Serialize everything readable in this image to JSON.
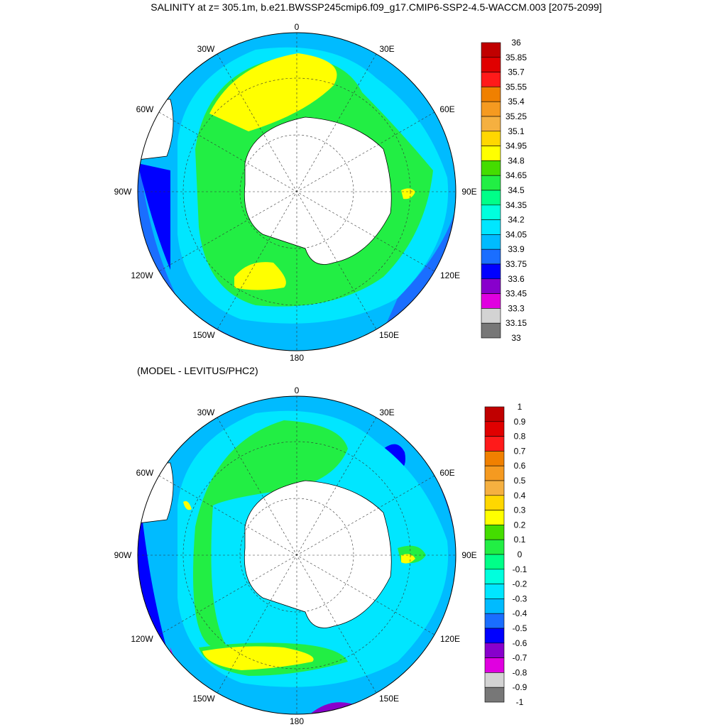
{
  "title": "SALINITY at z= 305.1m, b.e21.BWSSP245cmip6.f09_g17.CMIP6-SSP2-4.5-WACCM.003 [2075-2099]",
  "subtitle": "(MODEL - LEVITUS/PHC2)",
  "map_labels": {
    "top": "0",
    "bottom": "180",
    "w30": "30W",
    "w60": "60W",
    "w90": "90W",
    "w120": "120W",
    "w150": "150W",
    "e30": "30E",
    "e60": "60E",
    "e90": "90E",
    "e120": "120E",
    "e150": "150E"
  },
  "colorbar_top": {
    "labels": [
      "36",
      "35.85",
      "35.7",
      "35.55",
      "35.4",
      "35.25",
      "35.1",
      "34.95",
      "34.8",
      "34.65",
      "34.5",
      "34.35",
      "34.2",
      "34.05",
      "33.9",
      "33.75",
      "33.6",
      "33.45",
      "33.3",
      "33.15",
      "33"
    ],
    "colors": [
      "#c00000",
      "#e00000",
      "#ff1a1a",
      "#f08000",
      "#f59a20",
      "#f5b040",
      "#ffd700",
      "#ffff00",
      "#44dd00",
      "#22ee44",
      "#00ff88",
      "#00ffdd",
      "#00e6ff",
      "#00bbff",
      "#1a6eff",
      "#0000ff",
      "#8800cc",
      "#e000e0",
      "#d3d3d3",
      "#777777"
    ]
  },
  "colorbar_bottom": {
    "labels": [
      "1",
      "0.9",
      "0.8",
      "0.7",
      "0.6",
      "0.5",
      "0.4",
      "0.3",
      "0.2",
      "0.1",
      "0",
      "-0.1",
      "-0.2",
      "-0.3",
      "-0.4",
      "-0.5",
      "-0.6",
      "-0.7",
      "-0.8",
      "-0.9",
      "-1"
    ],
    "colors": [
      "#c00000",
      "#e00000",
      "#ff1a1a",
      "#f08000",
      "#f59a20",
      "#f5b040",
      "#ffd700",
      "#ffff00",
      "#44dd00",
      "#22ee44",
      "#00ff88",
      "#00ffdd",
      "#00e6ff",
      "#00bbff",
      "#1a6eff",
      "#0000ff",
      "#8800cc",
      "#e000e0",
      "#d3d3d3",
      "#777777"
    ]
  }
}
